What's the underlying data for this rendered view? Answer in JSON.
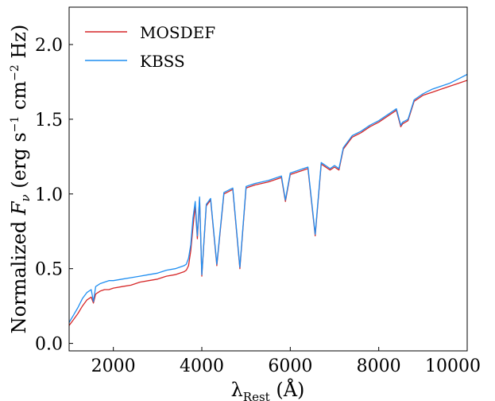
{
  "chart_data": {
    "type": "line",
    "title": "",
    "xlabel": {
      "main": "λ",
      "sub": "Rest",
      "unit": "(Å)"
    },
    "ylabel": {
      "pre": "Normalized ",
      "var": "F",
      "sub": "ν",
      "units_pre": " (erg s",
      "exp1": "−1",
      "units_mid": " cm",
      "exp2": "−2",
      "units_post": " Hz)"
    },
    "xlim": [
      1000,
      10000
    ],
    "ylim": [
      -0.05,
      2.25
    ],
    "xticks": [
      2000,
      4000,
      6000,
      8000,
      10000
    ],
    "yticks": [
      0.0,
      0.5,
      1.0,
      1.5,
      2.0
    ],
    "grid": false,
    "legend": {
      "placement": "top-left"
    },
    "series": [
      {
        "name": "MOSDEF",
        "color": "#d62728",
        "x": [
          1000,
          1100,
          1200,
          1300,
          1400,
          1500,
          1550,
          1600,
          1700,
          1800,
          1900,
          2000,
          2200,
          2400,
          2600,
          2800,
          3000,
          3200,
          3400,
          3600,
          3650,
          3700,
          3750,
          3800,
          3850,
          3900,
          3950,
          4000,
          4100,
          4200,
          4340,
          4500,
          4700,
          4861,
          5000,
          5200,
          5500,
          5800,
          5890,
          6000,
          6200,
          6400,
          6563,
          6700,
          6900,
          7000,
          7100,
          7200,
          7400,
          7600,
          7800,
          8000,
          8200,
          8400,
          8498,
          8542,
          8662,
          8800,
          9000,
          9200,
          9400,
          9600,
          9800,
          10000
        ],
        "y": [
          0.12,
          0.16,
          0.2,
          0.25,
          0.29,
          0.31,
          0.27,
          0.33,
          0.35,
          0.36,
          0.36,
          0.37,
          0.38,
          0.39,
          0.41,
          0.42,
          0.43,
          0.45,
          0.46,
          0.48,
          0.49,
          0.52,
          0.62,
          0.78,
          0.92,
          0.7,
          0.97,
          0.45,
          0.92,
          0.96,
          0.52,
          1.0,
          1.03,
          0.5,
          1.04,
          1.06,
          1.08,
          1.11,
          0.95,
          1.13,
          1.15,
          1.17,
          0.72,
          1.2,
          1.16,
          1.18,
          1.16,
          1.3,
          1.38,
          1.41,
          1.45,
          1.48,
          1.52,
          1.56,
          1.45,
          1.47,
          1.49,
          1.62,
          1.66,
          1.68,
          1.7,
          1.72,
          1.74,
          1.76
        ]
      },
      {
        "name": "KBSS",
        "color": "#1f8ef1",
        "x": [
          1000,
          1100,
          1200,
          1300,
          1400,
          1500,
          1550,
          1600,
          1700,
          1800,
          1900,
          2000,
          2200,
          2400,
          2600,
          2800,
          3000,
          3200,
          3400,
          3600,
          3650,
          3700,
          3750,
          3800,
          3850,
          3900,
          3950,
          4000,
          4100,
          4200,
          4340,
          4500,
          4700,
          4861,
          5000,
          5200,
          5500,
          5800,
          5890,
          6000,
          6200,
          6400,
          6563,
          6700,
          6900,
          7000,
          7100,
          7200,
          7400,
          7600,
          7800,
          8000,
          8200,
          8400,
          8498,
          8542,
          8662,
          8800,
          9000,
          9200,
          9400,
          9600,
          9800,
          10000
        ],
        "y": [
          0.14,
          0.19,
          0.24,
          0.3,
          0.34,
          0.36,
          0.28,
          0.38,
          0.4,
          0.41,
          0.42,
          0.42,
          0.43,
          0.44,
          0.45,
          0.46,
          0.47,
          0.49,
          0.5,
          0.52,
          0.53,
          0.57,
          0.66,
          0.84,
          0.95,
          0.72,
          0.98,
          0.46,
          0.93,
          0.97,
          0.53,
          1.01,
          1.04,
          0.51,
          1.05,
          1.07,
          1.09,
          1.12,
          0.96,
          1.14,
          1.16,
          1.18,
          0.73,
          1.21,
          1.17,
          1.19,
          1.17,
          1.31,
          1.39,
          1.42,
          1.46,
          1.49,
          1.53,
          1.57,
          1.46,
          1.48,
          1.5,
          1.63,
          1.67,
          1.7,
          1.72,
          1.74,
          1.77,
          1.8
        ]
      }
    ]
  }
}
